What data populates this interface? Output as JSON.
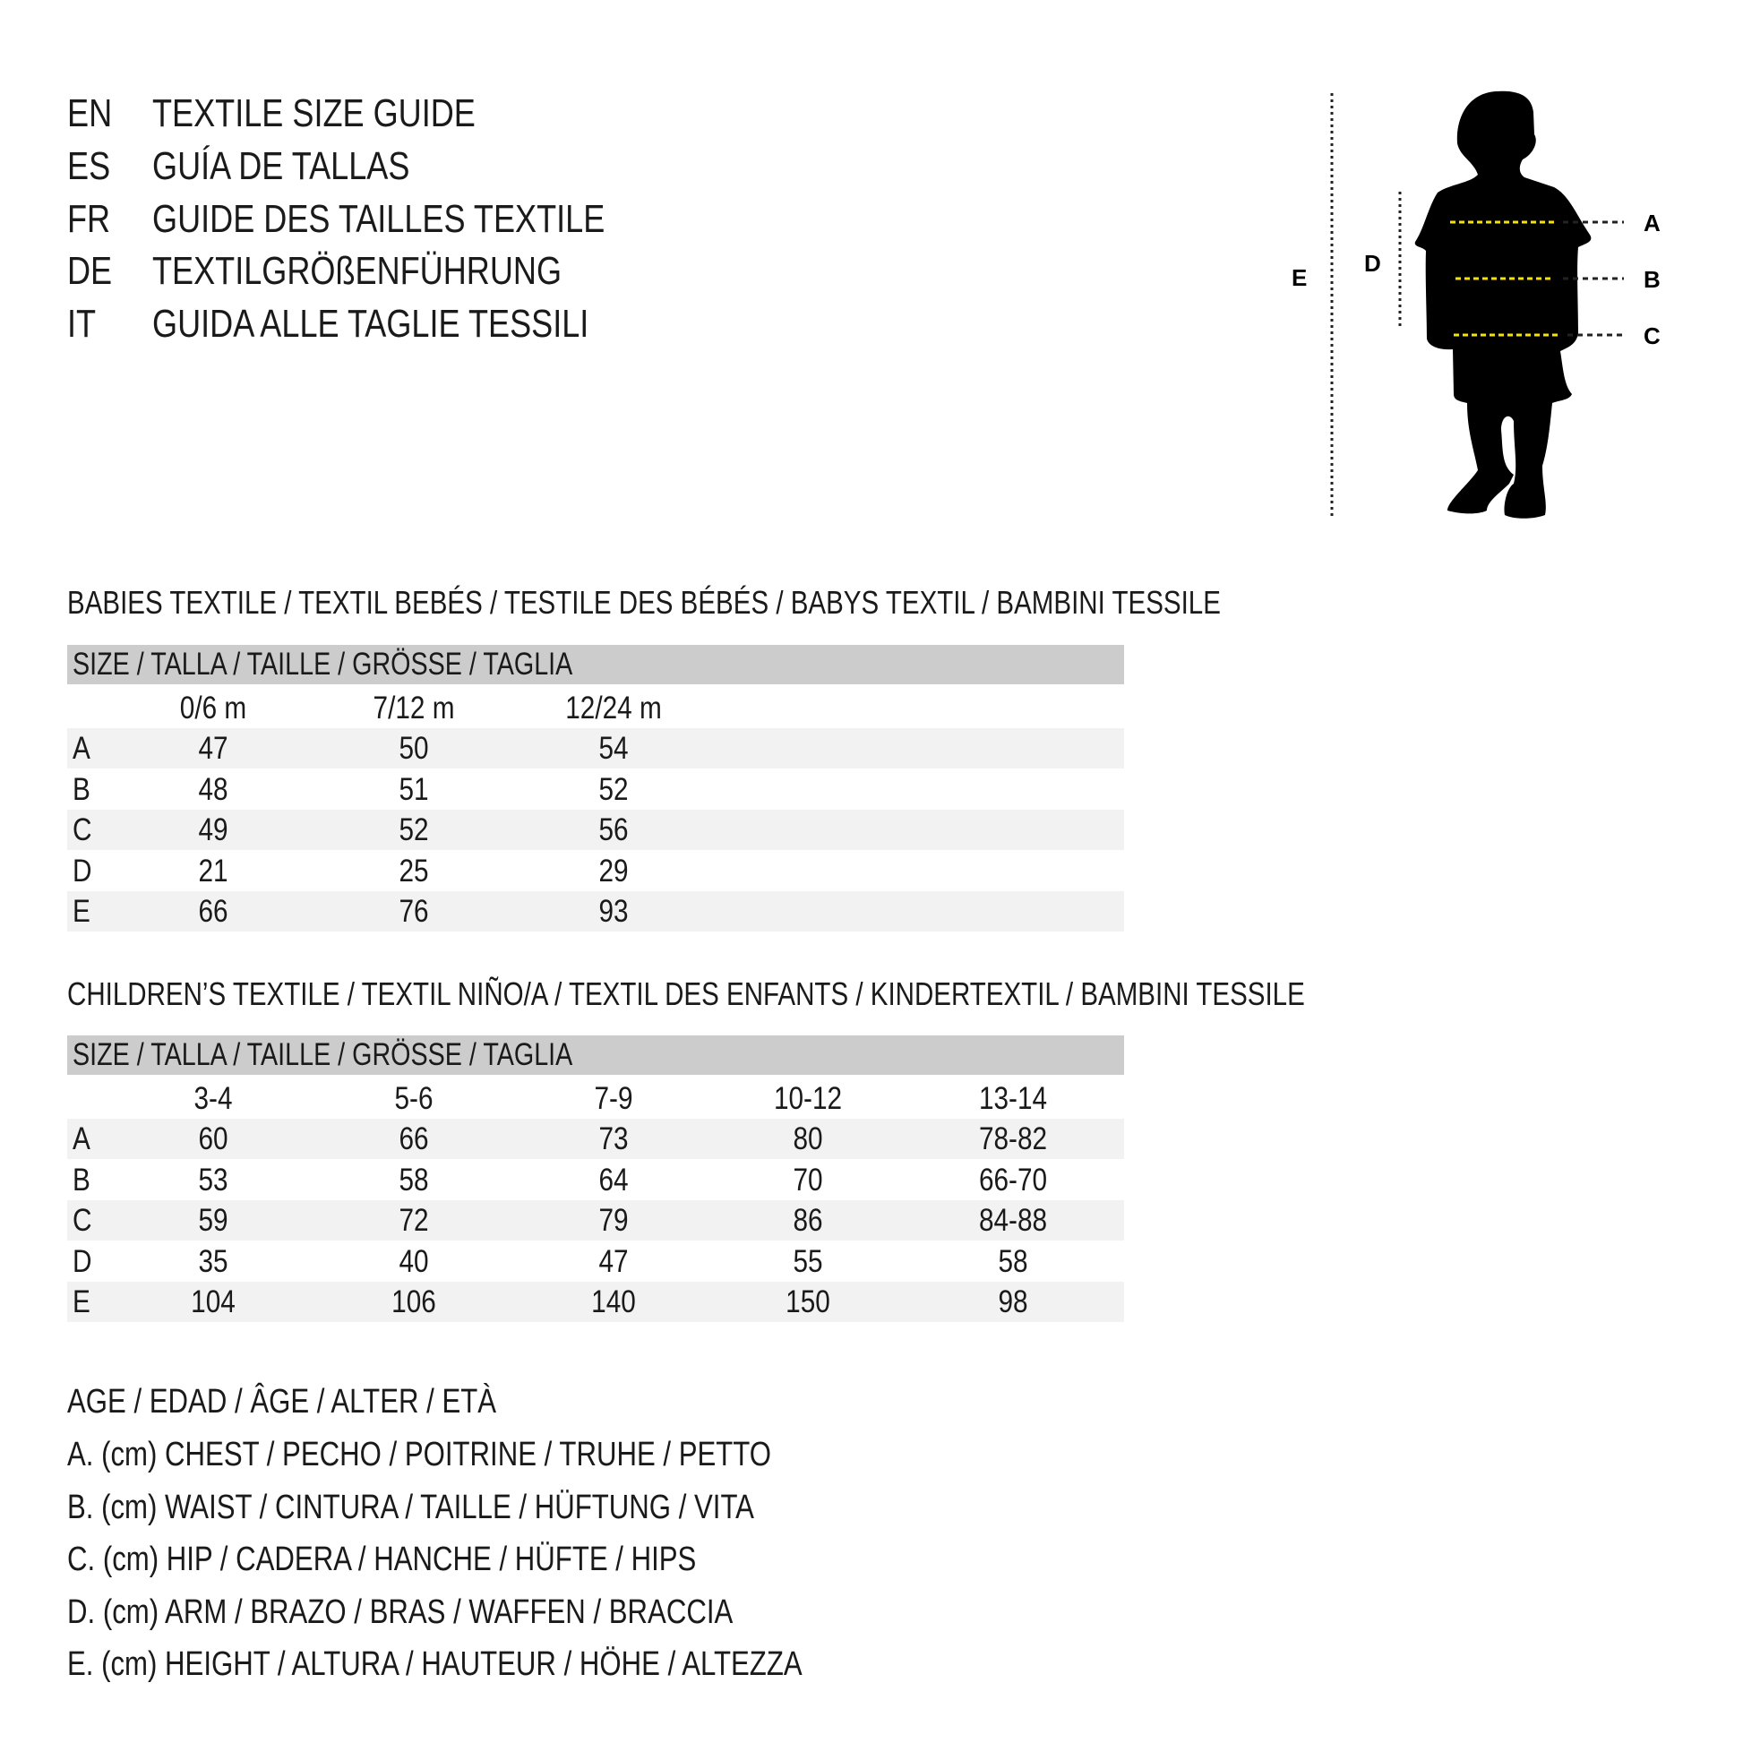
{
  "titles": [
    {
      "code": "EN",
      "text": "TEXTILE SIZE GUIDE"
    },
    {
      "code": "ES",
      "text": "GUÍA DE TALLAS"
    },
    {
      "code": "FR",
      "text": "GUIDE DES TAILLES TEXTILE"
    },
    {
      "code": "DE",
      "text": "TEXTILGRÖßENFÜHRUNG"
    },
    {
      "code": "IT",
      "text": "GUIDA ALLE TAGLIE TESSILI"
    }
  ],
  "diagram": {
    "labels": {
      "a": "A",
      "b": "B",
      "c": "C",
      "d": "D",
      "e": "E"
    },
    "guide_color": "#f5e400"
  },
  "babies": {
    "heading": "BABIES TEXTILE / TEXTIL BEBÉS / TESTILE DES BÉBÉS / BABYS TEXTIL / BAMBINI TESSILE",
    "size_label": "SIZE / TALLA / TAILLE / GRÖSSE / TAGLIA",
    "columns": [
      "0/6 m",
      "7/12 m",
      "12/24 m"
    ],
    "rows": [
      {
        "label": "A",
        "values": [
          "47",
          "50",
          "54"
        ]
      },
      {
        "label": "B",
        "values": [
          "48",
          "51",
          "52"
        ]
      },
      {
        "label": "C",
        "values": [
          "49",
          "52",
          "56"
        ]
      },
      {
        "label": "D",
        "values": [
          "21",
          "25",
          "29"
        ]
      },
      {
        "label": "E",
        "values": [
          "66",
          "76",
          "93"
        ]
      }
    ]
  },
  "children": {
    "heading": "CHILDREN’S TEXTILE / TEXTIL NIÑO/A / TEXTIL DES ENFANTS / KINDERTEXTIL / BAMBINI TESSILE",
    "size_label": "SIZE / TALLA / TAILLE / GRÖSSE / TAGLIA",
    "columns": [
      "3-4",
      "5-6",
      "7-9",
      "10-12",
      "13-14"
    ],
    "rows": [
      {
        "label": "A",
        "values": [
          "60",
          "66",
          "73",
          "80",
          "78-82"
        ]
      },
      {
        "label": "B",
        "values": [
          "53",
          "58",
          "64",
          "70",
          "66-70"
        ]
      },
      {
        "label": "C",
        "values": [
          "59",
          "72",
          "79",
          "86",
          "84-88"
        ]
      },
      {
        "label": "D",
        "values": [
          "35",
          "40",
          "47",
          "55",
          "58"
        ]
      },
      {
        "label": "E",
        "values": [
          "104",
          "106",
          "140",
          "150",
          "98"
        ]
      }
    ]
  },
  "legend": [
    "AGE / EDAD / ÂGE / ALTER / ETÀ",
    "A. (cm) CHEST / PECHO / POITRINE / TRUHE / PETTO",
    "B. (cm) WAIST / CINTURA / TAILLE / HÜFTUNG / VITA",
    "C. (cm) HIP / CADERA / HANCHE / HÜFTE / HIPS",
    "D. (cm) ARM / BRAZO / BRAS / WAFFEN / BRACCIA",
    "E. (cm) HEIGHT / ALTURA / HAUTEUR / HÖHE / ALTEZZA"
  ]
}
